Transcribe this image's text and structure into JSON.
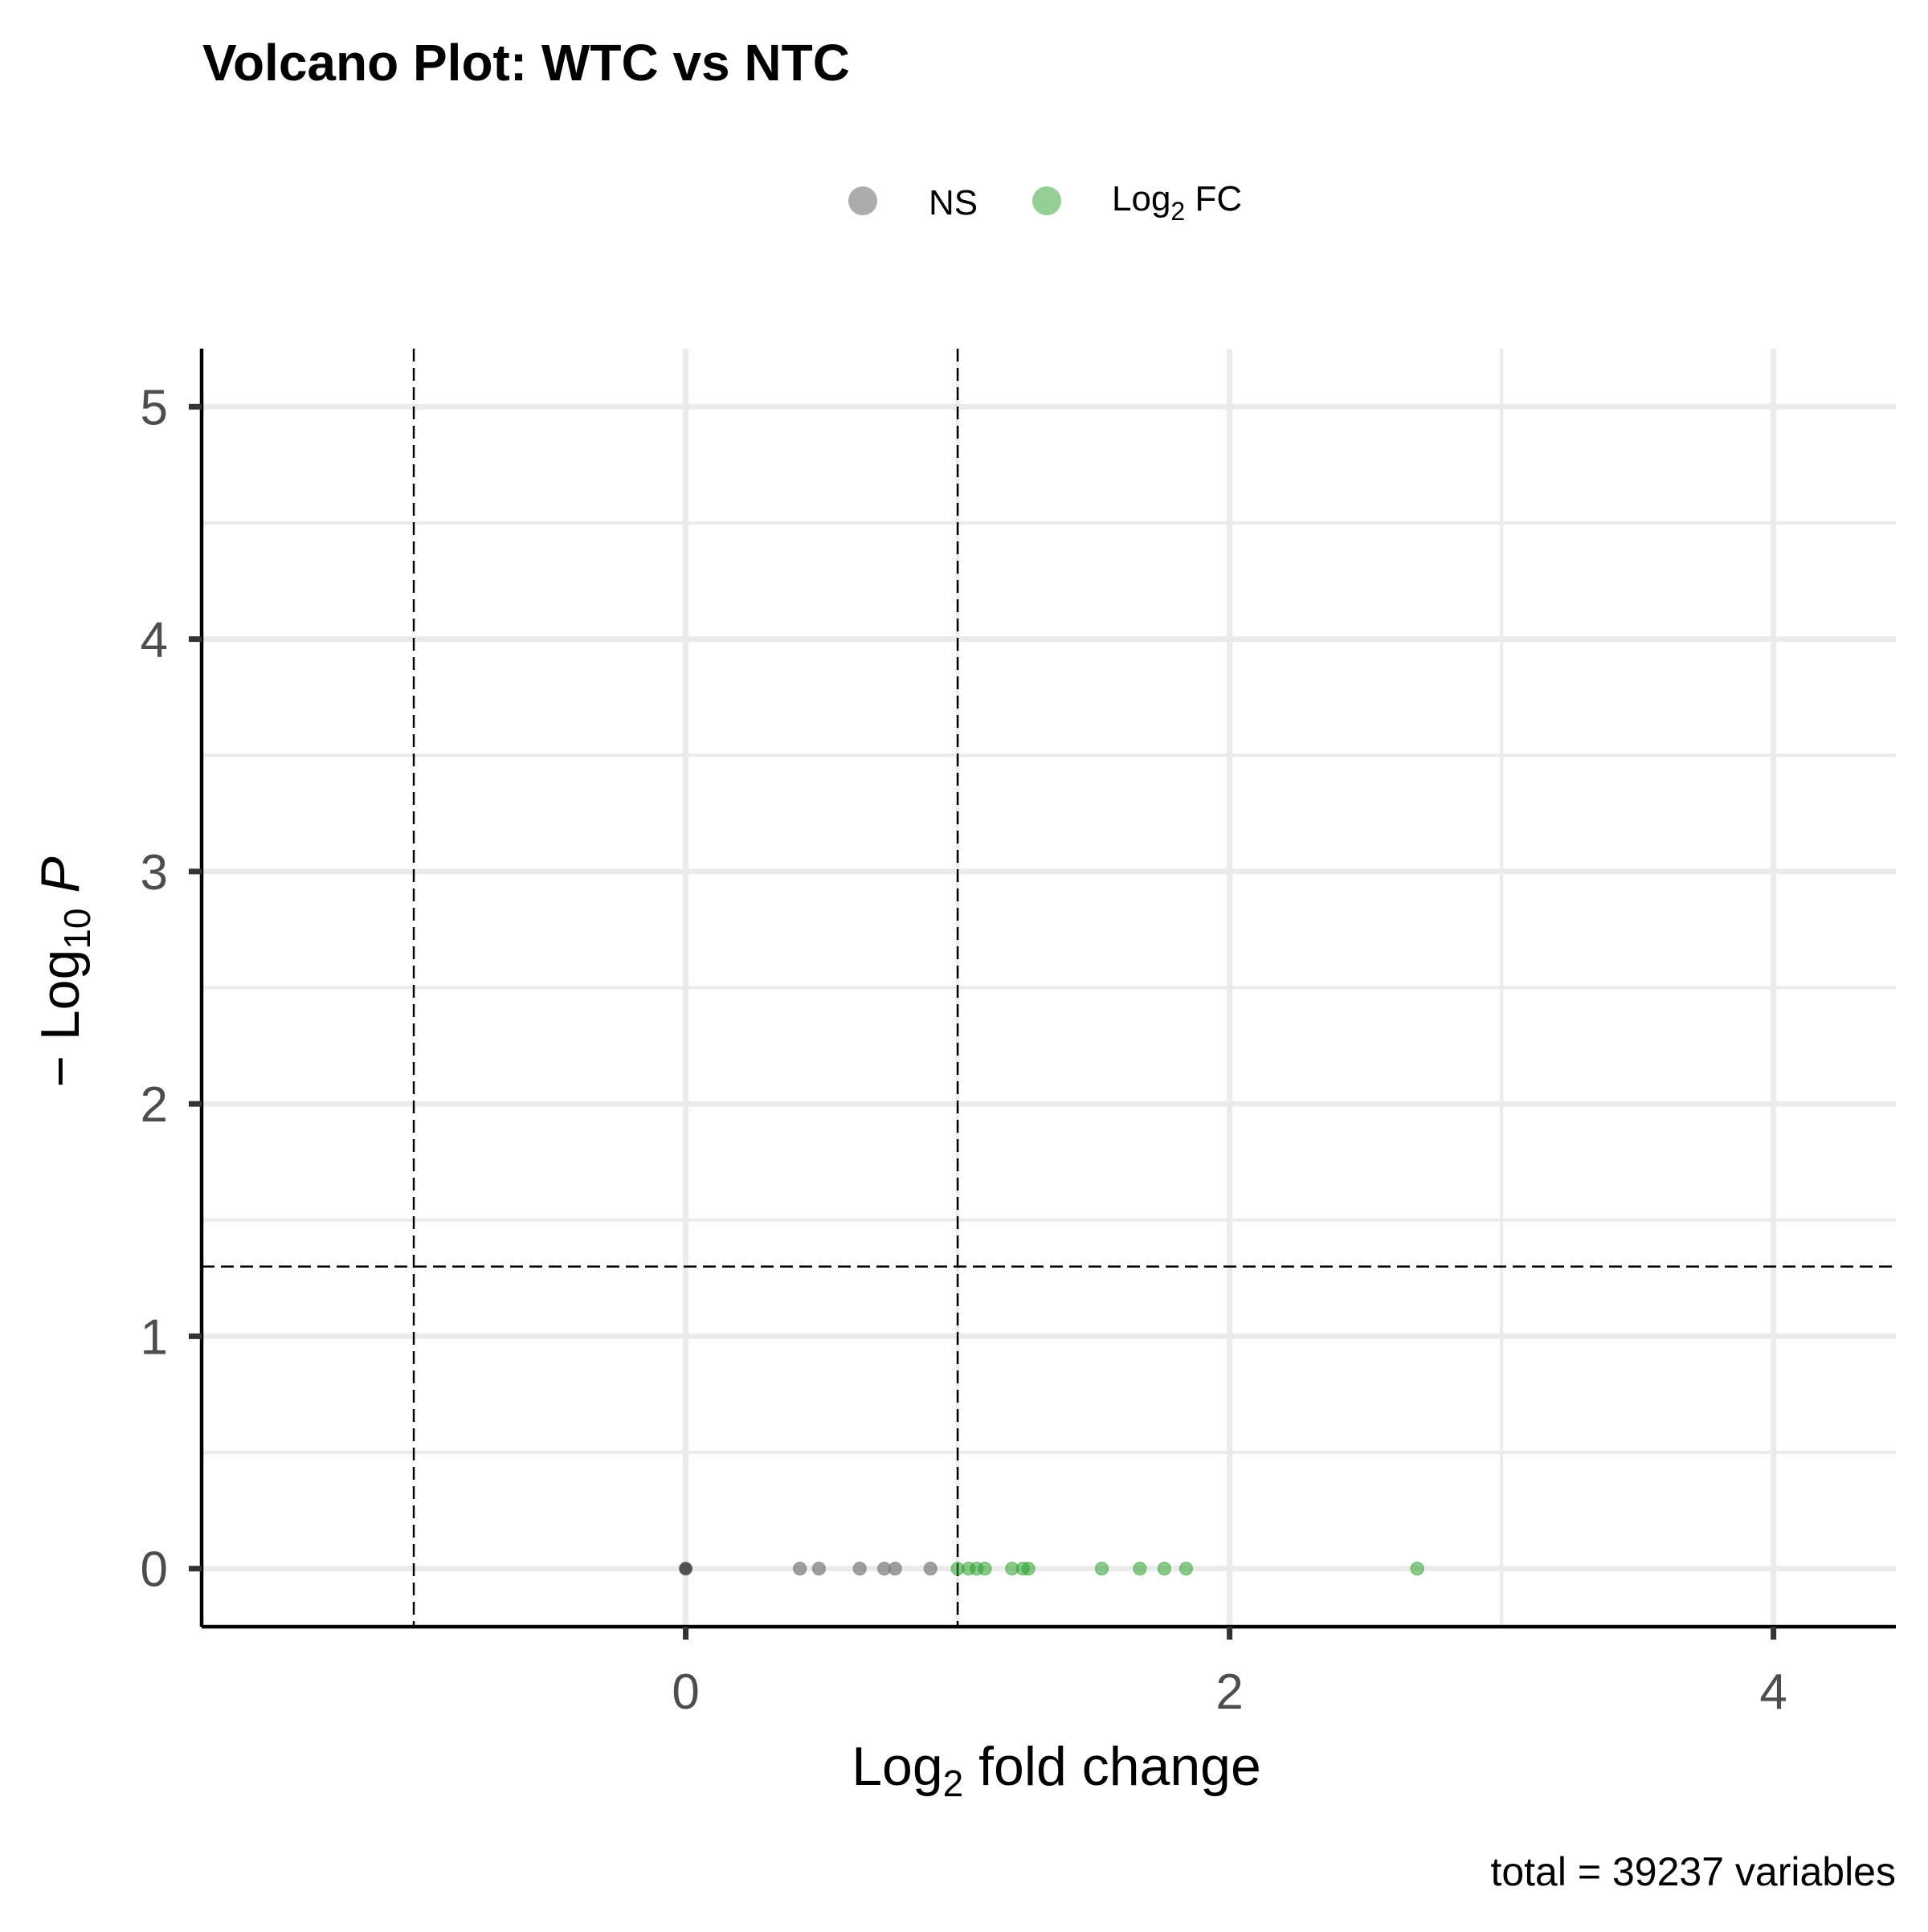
{
  "chart_data": {
    "type": "scatter",
    "title": "Volcano Plot: WTC vs NTC",
    "xlabel": "Log2 fold change",
    "ylabel": "-Log10 P",
    "caption": "total = 39237 variables",
    "xlim": [
      -1.78,
      4.45
    ],
    "ylim": [
      -0.25,
      5.25
    ],
    "x_ticks": [
      0,
      2,
      4
    ],
    "x_tick_labels": [
      "0",
      "2",
      "4"
    ],
    "y_ticks": [
      0,
      1,
      2,
      3,
      4,
      5
    ],
    "y_tick_labels": [
      "0",
      "1",
      "2",
      "3",
      "4",
      "5"
    ],
    "grid": true,
    "legend_position": "top",
    "cutoffs": {
      "fold_change": [
        -1,
        1
      ],
      "p_value_line": 1.3
    },
    "legend": [
      {
        "label_main": "NS",
        "label_sub": "",
        "label_tail": "",
        "color": "#808080"
      },
      {
        "label_main": "Log",
        "label_sub": "2",
        "label_tail": " FC",
        "color": "#2ca02c"
      }
    ],
    "series": [
      {
        "name": "NS",
        "color": "#808080",
        "points": [
          {
            "x": 0.0,
            "y": 0.0
          },
          {
            "x": 0.42,
            "y": 0.0
          },
          {
            "x": 0.49,
            "y": 0.0
          },
          {
            "x": 0.64,
            "y": 0.0
          },
          {
            "x": 0.73,
            "y": 0.0
          },
          {
            "x": 0.77,
            "y": 0.0
          },
          {
            "x": 0.9,
            "y": 0.0
          }
        ]
      },
      {
        "name": "Log2 FC",
        "color": "#2ca02c",
        "points": [
          {
            "x": 1.0,
            "y": 0.0
          },
          {
            "x": 1.04,
            "y": 0.0
          },
          {
            "x": 1.07,
            "y": 0.0
          },
          {
            "x": 1.1,
            "y": 0.0
          },
          {
            "x": 1.2,
            "y": 0.0
          },
          {
            "x": 1.24,
            "y": 0.0
          },
          {
            "x": 1.26,
            "y": 0.0
          },
          {
            "x": 1.53,
            "y": 0.0
          },
          {
            "x": 1.67,
            "y": 0.0
          },
          {
            "x": 1.76,
            "y": 0.0
          },
          {
            "x": 1.84,
            "y": 0.0
          },
          {
            "x": 2.69,
            "y": 0.0
          }
        ]
      }
    ]
  }
}
